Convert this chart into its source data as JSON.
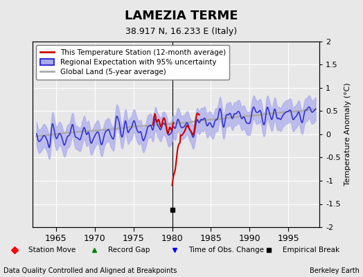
{
  "title": "LAMEZIA TERME",
  "subtitle": "38.917 N, 16.233 E (Italy)",
  "ylabel": "Temperature Anomaly (°C)",
  "xlim": [
    1962,
    1999
  ],
  "ylim": [
    -2,
    2
  ],
  "yticks": [
    -2,
    -1.5,
    -1,
    -0.5,
    0,
    0.5,
    1,
    1.5,
    2
  ],
  "xticks": [
    1965,
    1970,
    1975,
    1980,
    1985,
    1990,
    1995
  ],
  "vline_x": 1980,
  "empirical_break_x": 1980,
  "empirical_break_y": -1.62,
  "footer_left": "Data Quality Controlled and Aligned at Breakpoints",
  "footer_right": "Berkeley Earth",
  "bg_color": "#e8e8e8",
  "plot_bg_color": "#e8e8e8",
  "regional_color": "#3333cc",
  "regional_fill_color": "#aaaaee",
  "station_color": "#cc0000",
  "global_color": "#aaaaaa",
  "grid_color": "#ffffff"
}
